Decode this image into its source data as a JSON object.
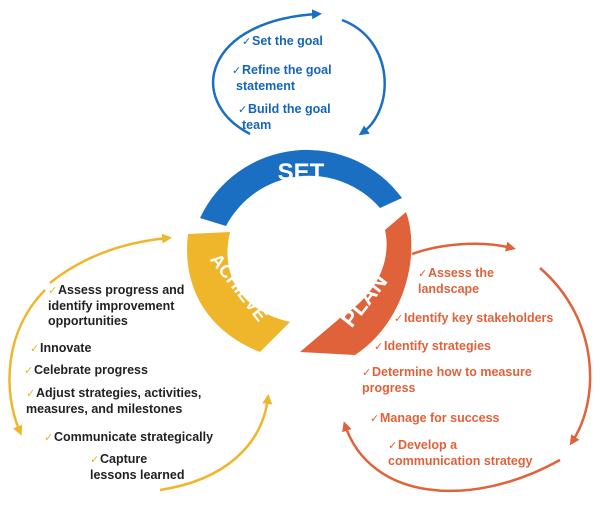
{
  "colors": {
    "set": "#1b6fc2",
    "plan": "#e0623a",
    "achieve": "#efb62c",
    "set_text": "#1565b8",
    "plan_text": "#e0623a",
    "achieve_text": "#222222"
  },
  "check_glyph": "✓",
  "set": {
    "label": "SET",
    "items": [
      {
        "lines": [
          "Set the goal"
        ]
      },
      {
        "lines": [
          "Refine the goal",
          "statement"
        ]
      },
      {
        "lines": [
          "Build the goal",
          "team"
        ]
      }
    ]
  },
  "plan": {
    "label": "PLAN",
    "items": [
      {
        "lines": [
          "Assess the",
          "landscape"
        ]
      },
      {
        "lines": [
          "Identify key stakeholders"
        ]
      },
      {
        "lines": [
          "Identify strategies"
        ]
      },
      {
        "lines": [
          "Determine how to measure",
          "progress"
        ]
      },
      {
        "lines": [
          "Manage for success"
        ]
      },
      {
        "lines": [
          "Develop a",
          "communication strategy"
        ]
      }
    ]
  },
  "achieve": {
    "label": "ACHIEVE",
    "items": [
      {
        "lines": [
          "Assess progress and",
          "identify improvement",
          "opportunities"
        ]
      },
      {
        "lines": [
          "Innovate"
        ]
      },
      {
        "lines": [
          "Celebrate progress"
        ]
      },
      {
        "lines": [
          "Adjust strategies, activities,",
          "measures, and milestones"
        ]
      },
      {
        "lines": [
          "Communicate strategically"
        ]
      },
      {
        "lines": [
          "Capture",
          "lessons learned"
        ]
      }
    ]
  }
}
